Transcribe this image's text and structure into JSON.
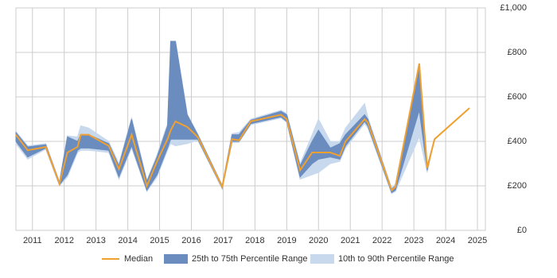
{
  "chart_data": {
    "type": "line",
    "x": [
      2010.48,
      2010.85,
      2011.42,
      2011.85,
      2012.1,
      2012.42,
      2012.52,
      2012.77,
      2013.4,
      2013.72,
      2014.12,
      2014.6,
      2014.92,
      2015.25,
      2015.35,
      2015.5,
      2015.87,
      2016.2,
      2016.97,
      2017.28,
      2017.5,
      2017.87,
      2018.82,
      2019.0,
      2019.42,
      2019.8,
      2020.0,
      2020.37,
      2020.67,
      2020.85,
      2021.45,
      2021.55,
      2022.3,
      2022.42,
      2023.17,
      2023.42,
      2023.65,
      2024.75
    ],
    "series": [
      {
        "name": "Median",
        "color": "#f0a030",
        "values": [
          430,
          360,
          375,
          210,
          350,
          375,
          430,
          430,
          380,
          275,
          430,
          200,
          310,
          410,
          450,
          490,
          465,
          420,
          195,
          410,
          405,
          490,
          520,
          500,
          270,
          350,
          350,
          350,
          335,
          400,
          500,
          485,
          180,
          195,
          750,
          280,
          410,
          550
        ]
      }
    ],
    "bands": [
      {
        "name": "10th to 90th Percentile Range",
        "color": "#c8d9ed",
        "low": [
          390,
          320,
          365,
          200,
          240,
          350,
          360,
          360,
          350,
          230,
          370,
          175,
          240,
          360,
          390,
          380,
          390,
          405,
          185,
          395,
          395,
          475,
          505,
          485,
          230,
          250,
          260,
          300,
          310,
          370,
          480,
          460,
          165,
          175,
          420,
          260,
          410,
          null
        ],
        "high": [
          445,
          380,
          390,
          220,
          425,
          420,
          470,
          460,
          400,
          300,
          505,
          225,
          340,
          480,
          850,
          850,
          520,
          435,
          205,
          435,
          440,
          500,
          540,
          525,
          300,
          430,
          500,
          400,
          400,
          460,
          570,
          510,
          190,
          210,
          750,
          290,
          410,
          null
        ]
      },
      {
        "name": "25th to 75th Percentile Range",
        "color": "#6a8cbf",
        "low": [
          400,
          330,
          370,
          205,
          250,
          360,
          370,
          370,
          360,
          240,
          380,
          180,
          250,
          370,
          410,
          410,
          410,
          410,
          190,
          400,
          400,
          480,
          510,
          490,
          240,
          300,
          320,
          330,
          320,
          380,
          490,
          470,
          170,
          180,
          540,
          270,
          410,
          null
        ],
        "high": [
          440,
          375,
          385,
          215,
          420,
          400,
          430,
          430,
          390,
          290,
          500,
          220,
          330,
          470,
          850,
          850,
          520,
          430,
          200,
          430,
          430,
          495,
          535,
          520,
          290,
          400,
          450,
          370,
          390,
          430,
          520,
          500,
          185,
          200,
          750,
          290,
          410,
          null
        ]
      }
    ],
    "xlim": [
      2010.48,
      2025.25
    ],
    "xticks": [
      2011,
      2012,
      2013,
      2014,
      2015,
      2016,
      2017,
      2018,
      2019,
      2020,
      2021,
      2022,
      2023,
      2024,
      2025
    ],
    "ylim": [
      0,
      1000
    ],
    "yticks": [
      {
        "value": 0,
        "label": "£0"
      },
      {
        "value": 200,
        "label": "£200"
      },
      {
        "value": 400,
        "label": "£400"
      },
      {
        "value": 600,
        "label": "£600"
      },
      {
        "value": 800,
        "label": "£800"
      },
      {
        "value": 1000,
        "label": "£1,000"
      }
    ],
    "grid": true
  }
}
